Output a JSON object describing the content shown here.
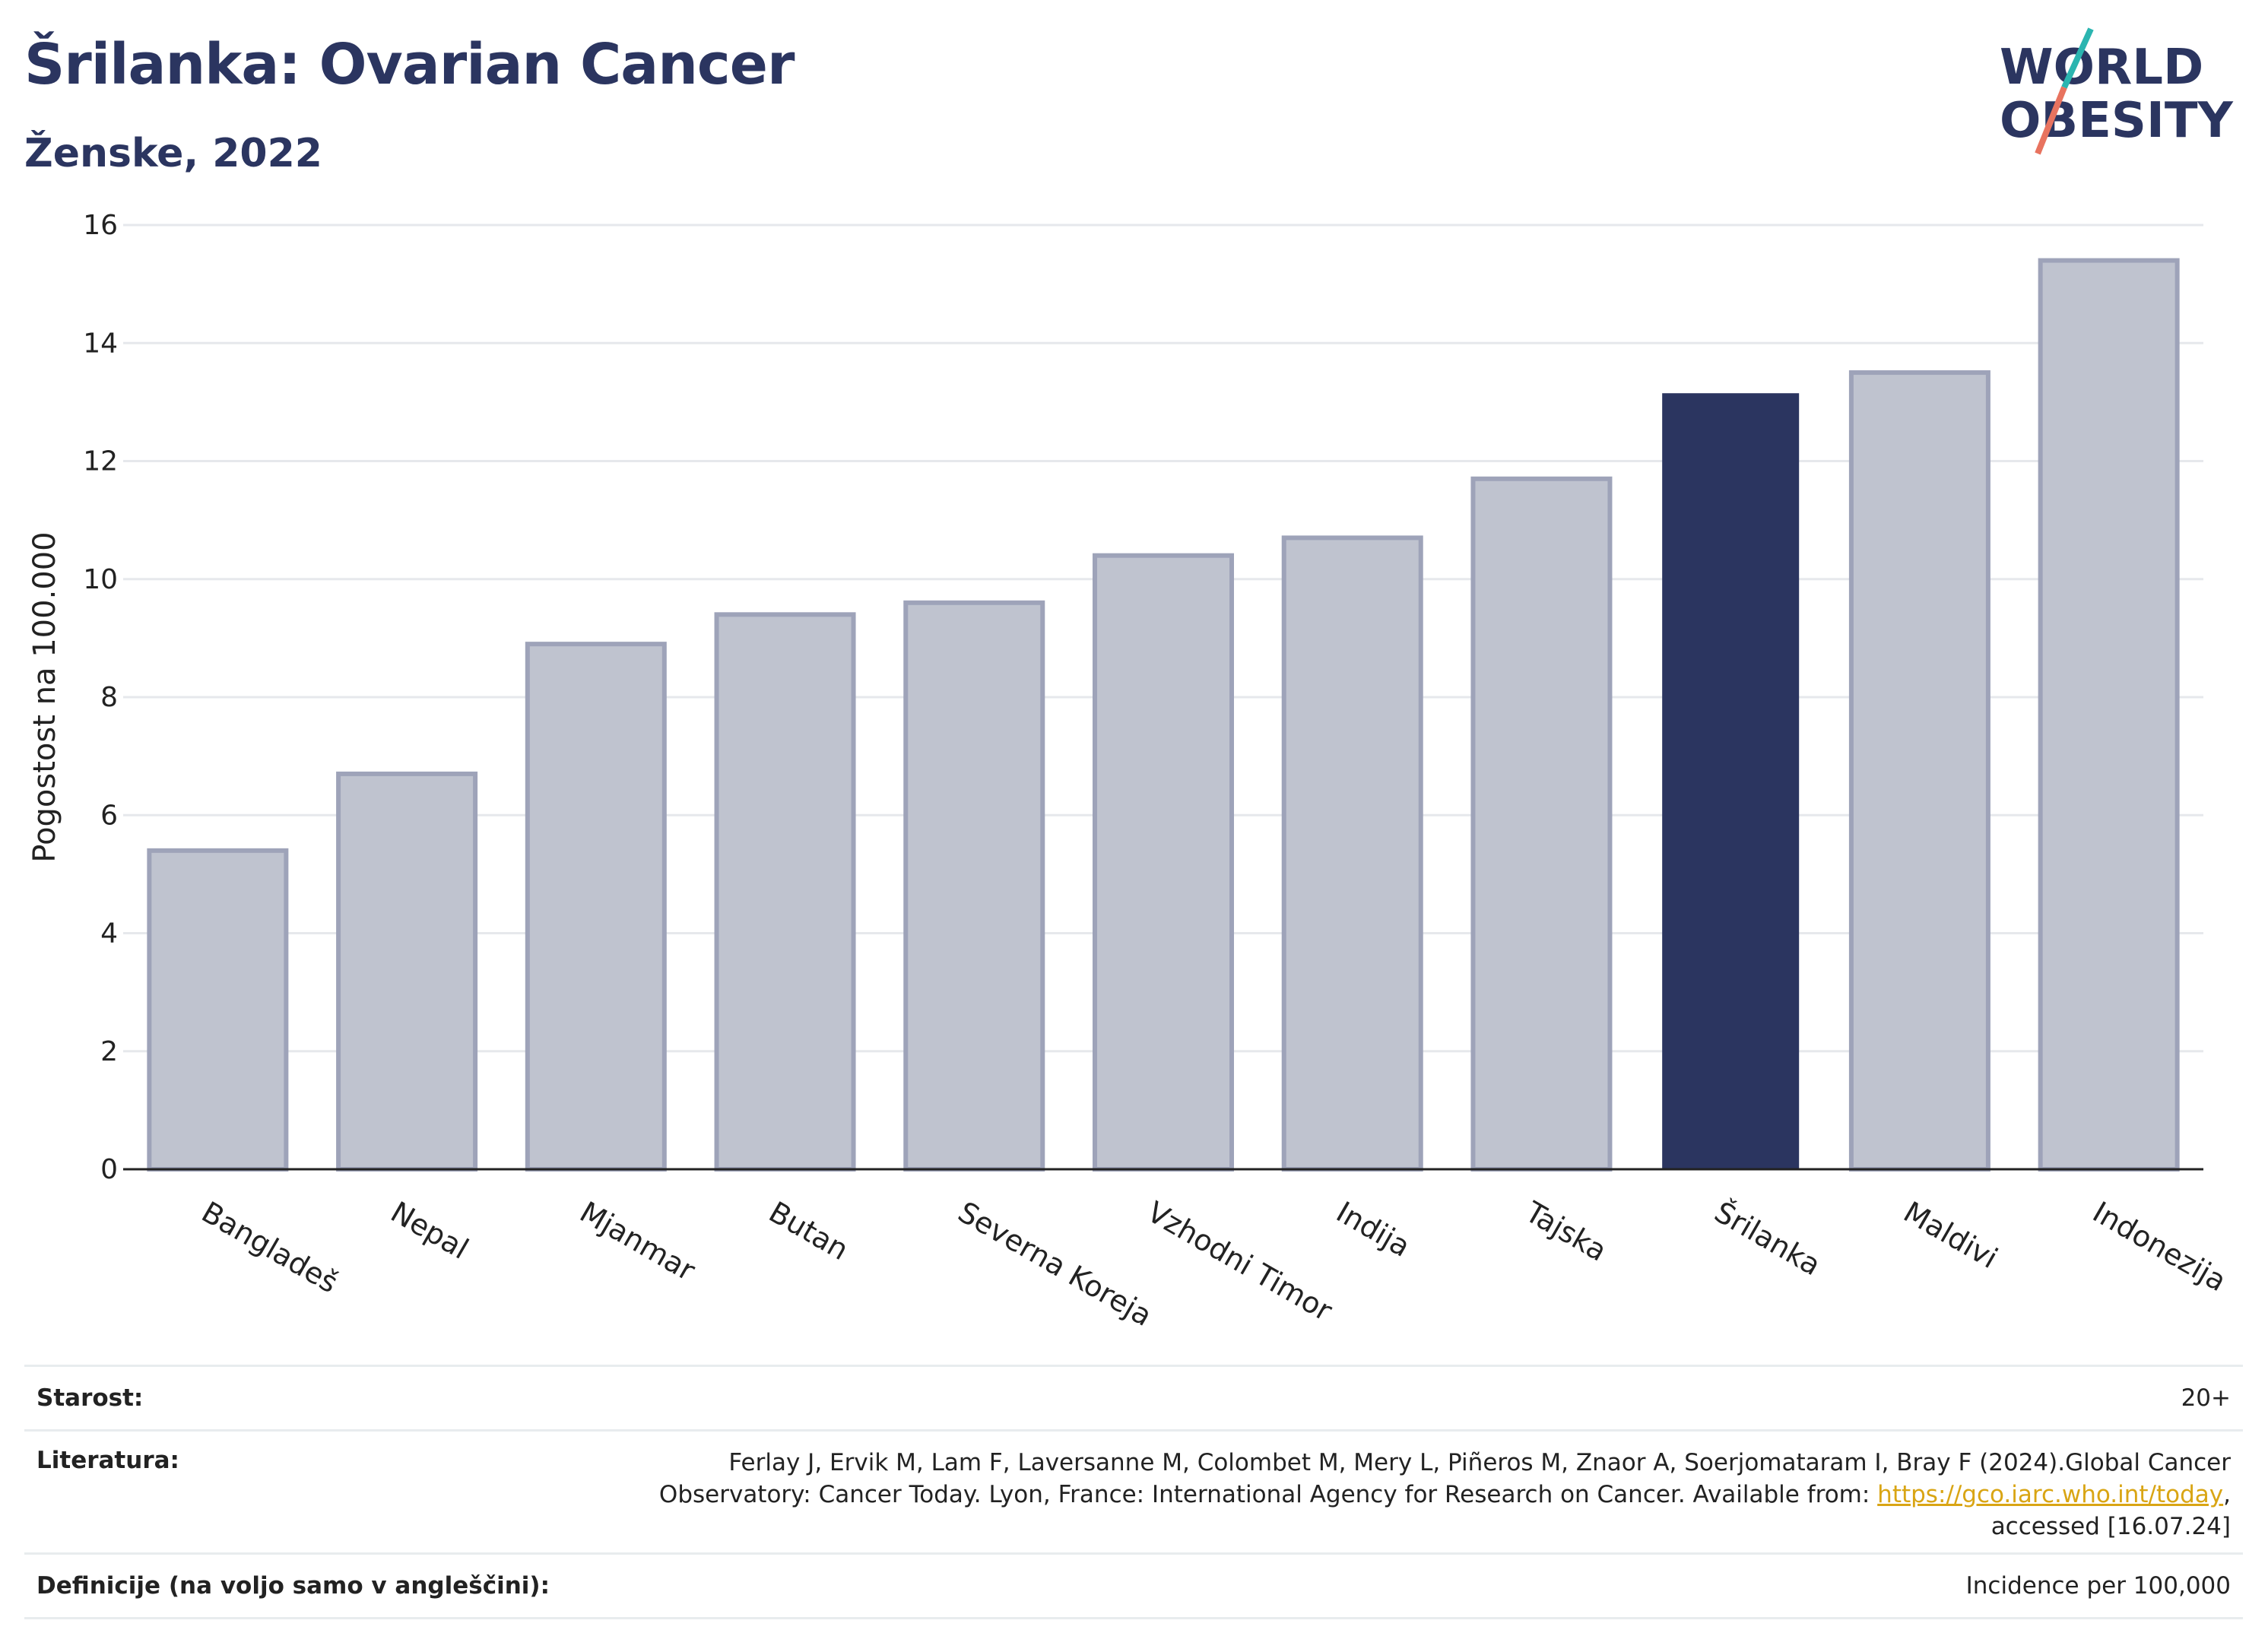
{
  "header": {
    "title": "Šrilanka: Ovarian Cancer",
    "subtitle": "Ženske, 2022"
  },
  "logo": {
    "line1": "WORLD",
    "line2": "OBESITY"
  },
  "colors": {
    "highlight": "#2b3560",
    "bar": "#bfc3cf",
    "barStroke": "#9ea3b9",
    "grid": "#e6e8ec",
    "brand_teal": "#2bb5b0",
    "brand_coral": "#e8735f"
  },
  "chart_data": {
    "type": "bar",
    "categories": [
      "Bangladeš",
      "Nepal",
      "Mjanmar",
      "Butan",
      "Severna Koreja",
      "Vzhodni Timor",
      "Indija",
      "Tajska",
      "Šrilanka",
      "Maldivi",
      "Indonezija"
    ],
    "values": [
      5.4,
      6.7,
      8.9,
      9.4,
      9.6,
      10.4,
      10.7,
      11.7,
      13.15,
      13.5,
      15.4
    ],
    "highlight": "Šrilanka",
    "ylabel": "Pogostost na 100.000",
    "xlabel": "",
    "ylim": [
      0,
      16
    ],
    "yticks": [
      0,
      2,
      4,
      6,
      8,
      10,
      12,
      14,
      16
    ],
    "grid": true
  },
  "footer": {
    "age_label": "Starost:",
    "age_value": "20+",
    "lit_label": "Literatura:",
    "lit_line1": "Ferlay J, Ervik M, Lam F, Laversanne M, Colombet M, Mery L, Piñeros M, Znaor A, Soerjomataram I, Bray F (2024).Global Cancer",
    "lit_line2_pre": "Observatory: Cancer Today. Lyon, France: International Agency for Research on Cancer. Available from: ",
    "lit_link": "https://gco.iarc.who.int/today",
    "lit_line2_post": ",",
    "lit_line3": "accessed [16.07.24]",
    "def_label": "Definicije (na voljo samo v angleščini):",
    "def_value": "Incidence per 100,000"
  }
}
